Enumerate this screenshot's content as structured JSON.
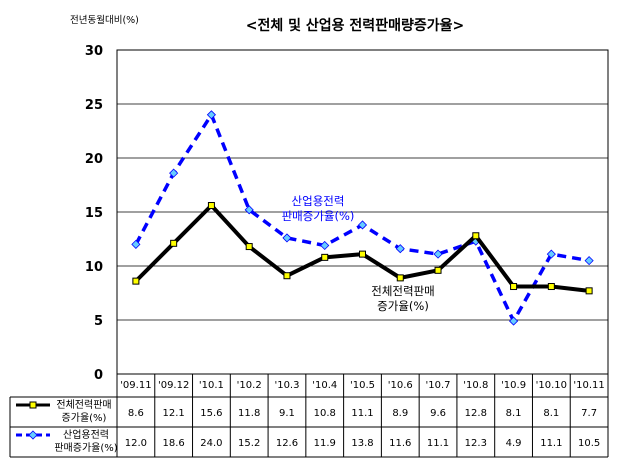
{
  "chart_data": {
    "type": "line",
    "title": "<전체 및 산업용 전력판매량증가율>",
    "ylabel": "전년동월대비(%)",
    "ylim": [
      0,
      30
    ],
    "yticks": [
      0,
      5,
      10,
      15,
      20,
      25,
      30
    ],
    "categories": [
      "'09.11",
      "'09.12",
      "'10.1",
      "'10.2",
      "'10.3",
      "'10.4",
      "'10.5",
      "'10.6",
      "'10.7",
      "'10.8",
      "'10.9",
      "'10.10",
      "'10.11"
    ],
    "series": [
      {
        "name": "전체전력판매 증가율(%)",
        "legend_lines": [
          "전체전력판매",
          "증가율(%)"
        ],
        "annotation_lines": [
          "전체전력판매",
          "증가율(%)"
        ],
        "color": "#000000",
        "marker_color": "#ffff00",
        "values": [
          8.6,
          12.1,
          15.6,
          11.8,
          9.1,
          10.8,
          11.1,
          8.9,
          9.6,
          12.8,
          8.1,
          8.1,
          7.7
        ],
        "labels": [
          "8.6",
          "12.1",
          "15.6",
          "11.8",
          "9.1",
          "10.8",
          "11.1",
          "8.9",
          "9.6",
          "12.8",
          "8.1",
          "8.1",
          "7.7"
        ]
      },
      {
        "name": "산업용전력 판매증가율(%)",
        "legend_lines": [
          "산업용전력",
          "판매증가율(%)"
        ],
        "annotation_lines": [
          "산업용전력",
          "판매증가율(%)"
        ],
        "color": "#0000ff",
        "marker_color": "#66ccff",
        "values": [
          12.0,
          18.6,
          24.0,
          15.2,
          12.6,
          11.9,
          13.8,
          11.6,
          11.1,
          12.3,
          4.9,
          11.1,
          10.5
        ],
        "labels": [
          "12.0",
          "18.6",
          "24.0",
          "15.2",
          "12.6",
          "11.9",
          "13.8",
          "11.6",
          "11.1",
          "12.3",
          "4.9",
          "11.1",
          "10.5"
        ]
      }
    ]
  }
}
